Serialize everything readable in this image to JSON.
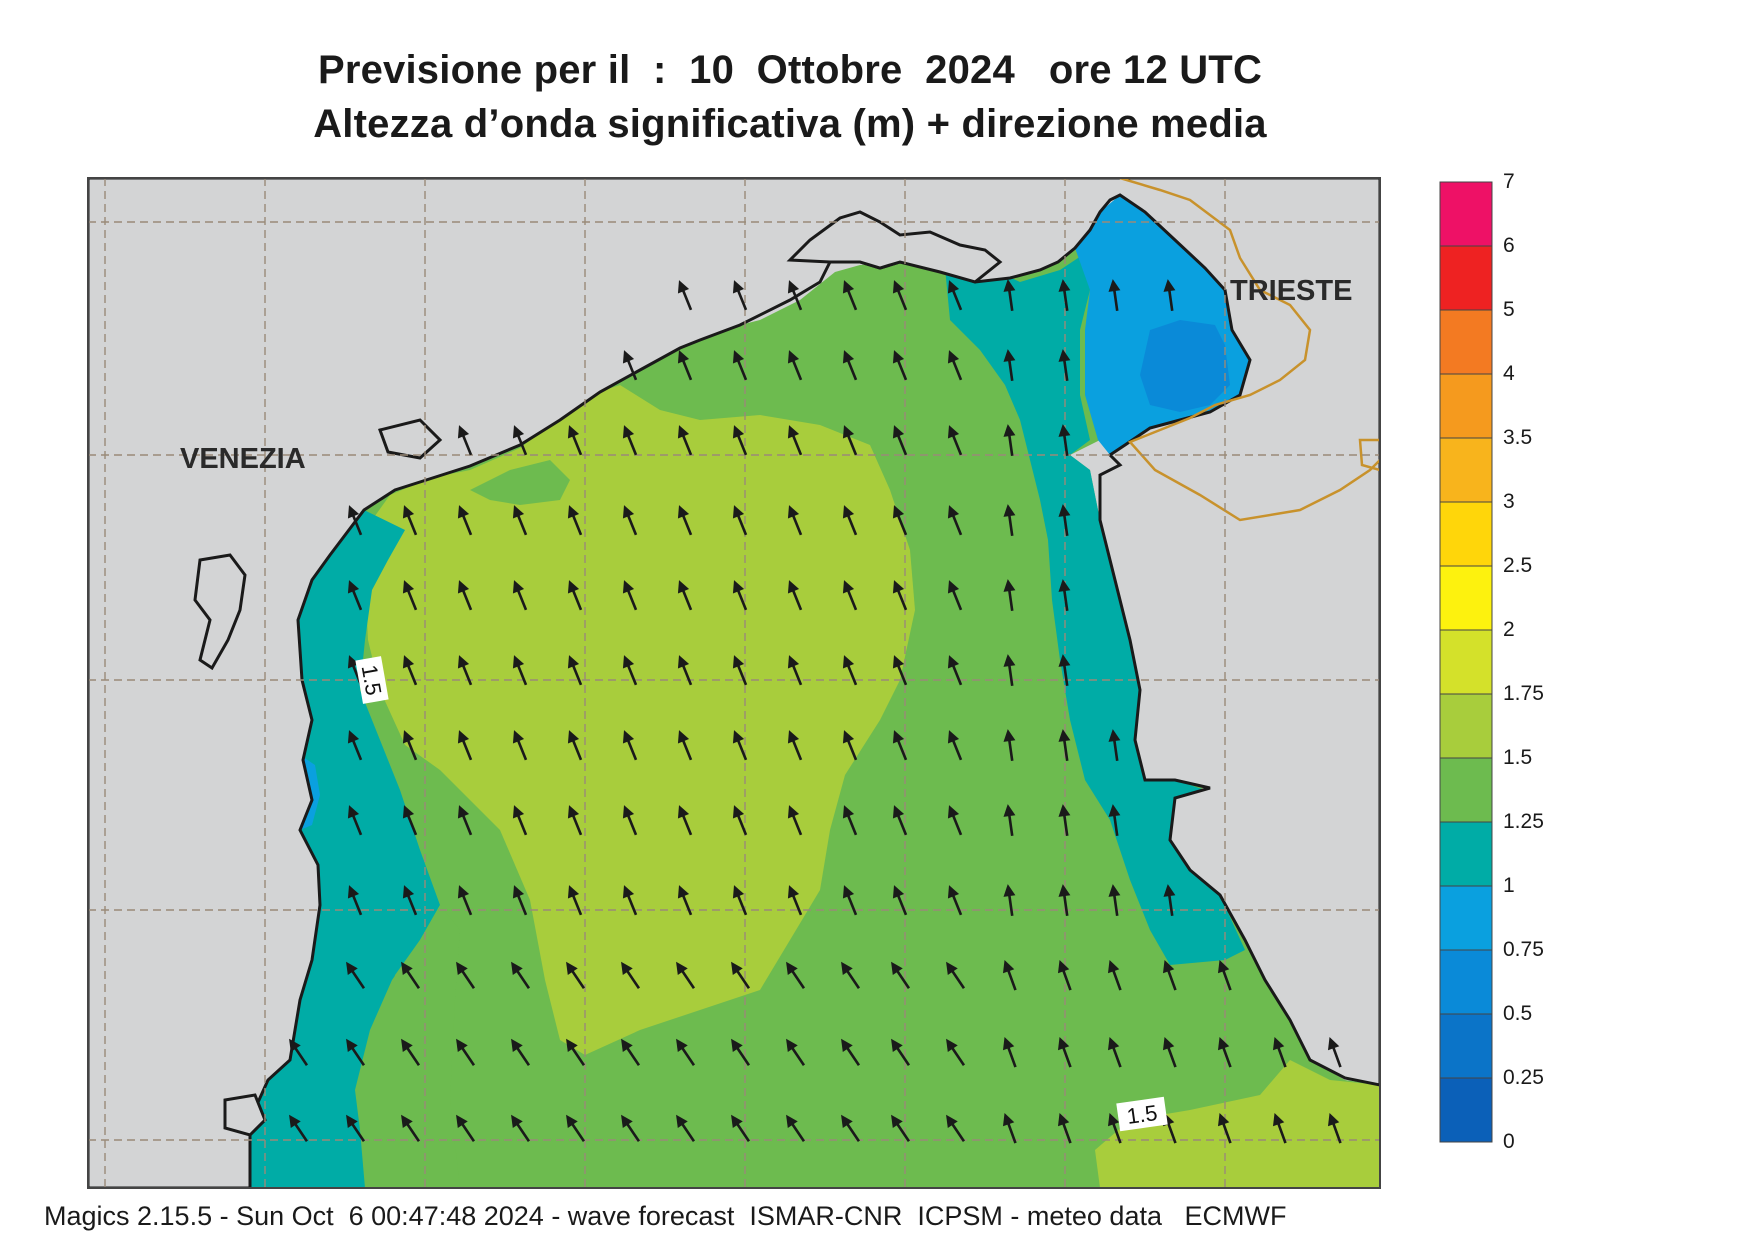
{
  "title": {
    "line1": "Previsione per il  :  10  Ottobre  2024   ore 12 UTC",
    "line2": "Altezza d’onda significativa (m) + direzione media"
  },
  "places": {
    "venezia": "VENEZIA",
    "trieste": "TRIESTE"
  },
  "contour_labels": [
    "1.5",
    "1.5"
  ],
  "legend": {
    "levels": [
      "7",
      "6",
      "5",
      "4",
      "3.5",
      "3",
      "2.5",
      "2",
      "1.75",
      "1.5",
      "1.25",
      "1",
      "0.75",
      "0.5",
      "0.25",
      "0"
    ],
    "colors": [
      "#ee1166",
      "#ee2222",
      "#f37a22",
      "#f59a1e",
      "#f8b41c",
      "#ffd60a",
      "#fdf20e",
      "#d4e12a",
      "#a8cd3c",
      "#6dbb4f",
      "#00aca6",
      "#0aa0df",
      "#0a8ad8",
      "#0b74c8",
      "#0b60b8"
    ]
  },
  "colors": {
    "land": "#d3d4d5",
    "coast": "#1a1a1a",
    "border": "#c8922c",
    "grid": "#9a8a78",
    "arrow": "#1a1a1a"
  },
  "footer": "Magics 2.15.5 - Sun Oct  6 00:47:48 2024 - wave forecast  ISMAR-CNR  ICPSM - meteo data   ECMWF"
}
